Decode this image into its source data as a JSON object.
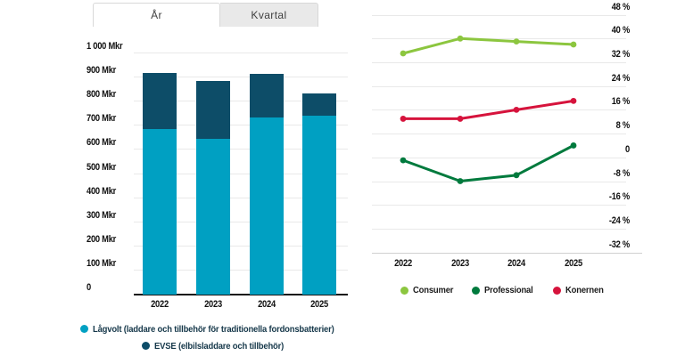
{
  "tabs": [
    {
      "label": "År",
      "active": true
    },
    {
      "label": "Kvartal",
      "active": false
    }
  ],
  "colors": {
    "lagvolt_blue": "#00a0c2",
    "evse_dark_blue": "#0d4d68",
    "consumer_green": "#8cc63f",
    "professional_green": "#007a3d",
    "konernen_red": "#d6133c",
    "gridline": "#e9e9e9",
    "axis_dark": "#141414"
  },
  "chart_data": [
    {
      "type": "bar",
      "stacked": true,
      "title": "",
      "xlabel": "",
      "ylabel": "Mkr",
      "categories": [
        "2022",
        "2023",
        "2024",
        "2025"
      ],
      "series": [
        {
          "name": "Lågvolt (laddare och tillbehör för traditionella fordonsbatterier)",
          "color": "#00a0c2",
          "values": [
            685,
            645,
            735,
            740
          ]
        },
        {
          "name": "EVSE (elbilsladdare och tillbehör)",
          "color": "#0d4d68",
          "values": [
            235,
            240,
            180,
            95
          ]
        }
      ],
      "totals": [
        920,
        885,
        915,
        835
      ],
      "ylim": [
        0,
        1000
      ],
      "ytick_interval": 100,
      "ytick_labels": [
        "1 000 Mkr",
        "900 Mkr",
        "800 Mkr",
        "700 Mkr",
        "600 Mkr",
        "500 Mkr",
        "400 Mkr",
        "300 Mkr",
        "200 Mkr",
        "100 Mkr",
        "0"
      ],
      "grid": true,
      "legend_position": "bottom"
    },
    {
      "type": "line",
      "title": "",
      "xlabel": "",
      "ylabel": "%",
      "categories": [
        "2022",
        "2023",
        "2024",
        "2025"
      ],
      "series": [
        {
          "name": "Consumer",
          "color": "#8cc63f",
          "values": [
            35,
            40,
            39,
            38
          ]
        },
        {
          "name": "Professional",
          "color": "#007a3d",
          "values": [
            -1,
            -8,
            -6,
            4
          ]
        },
        {
          "name": "Konernen",
          "color": "#d6133c",
          "values": [
            13,
            13,
            16,
            19
          ]
        }
      ],
      "ylim": [
        -32,
        48
      ],
      "ytick_interval": 8,
      "ytick_labels": [
        "48 %",
        "40 %",
        "32 %",
        "24 %",
        "16 %",
        "8 %",
        "0",
        "-8 %",
        "-16 %",
        "-24 %",
        "-32 %"
      ],
      "grid": true,
      "legend_position": "bottom"
    }
  ]
}
